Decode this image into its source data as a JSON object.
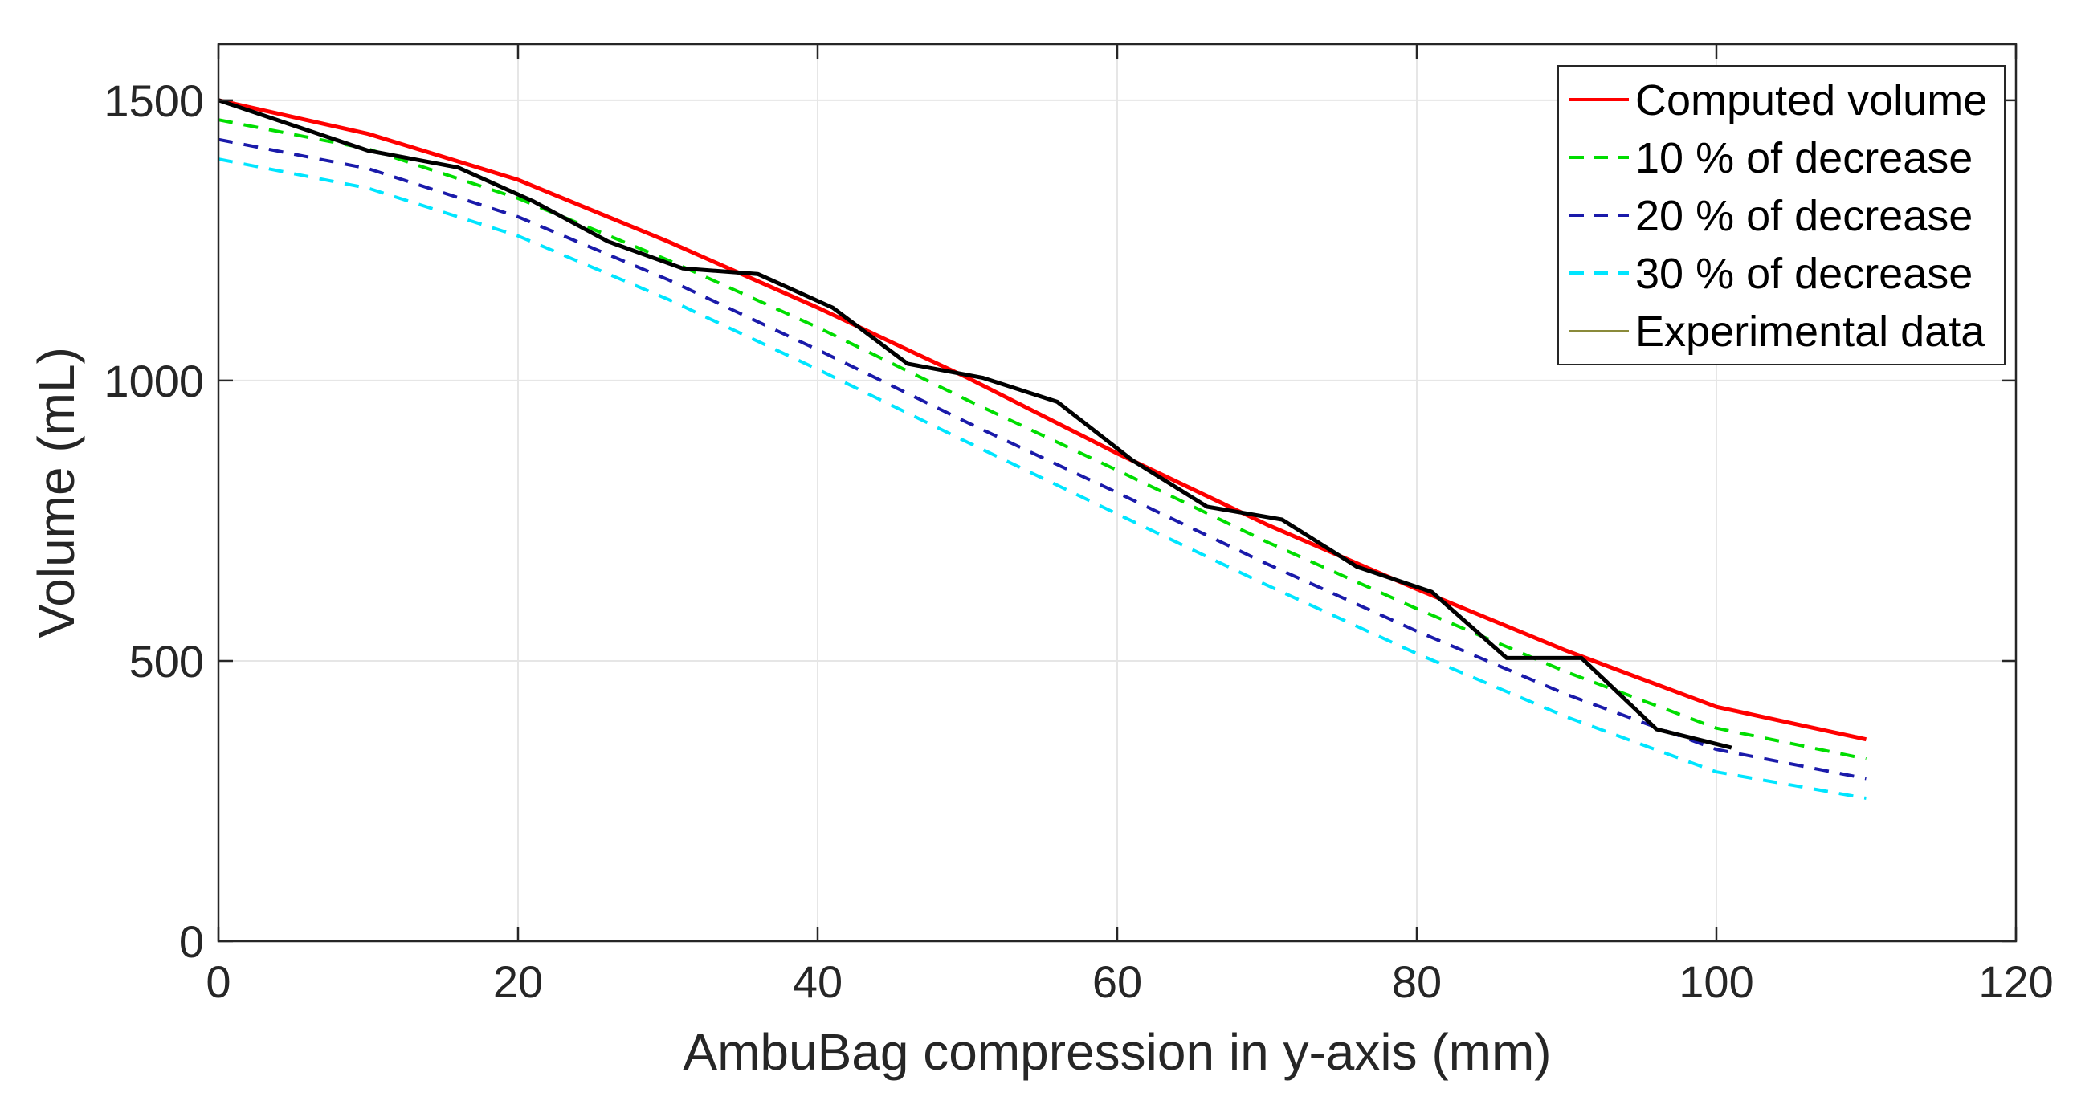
{
  "chart_data": {
    "type": "line",
    "title": "",
    "xlabel": "AmbuBag compression in y-axis (mm)",
    "ylabel": "Volume (mL)",
    "xlim": [
      0,
      120
    ],
    "ylim": [
      0,
      1600
    ],
    "xticks": [
      0,
      20,
      40,
      60,
      80,
      100,
      120
    ],
    "yticks": [
      0,
      500,
      1000,
      1500
    ],
    "grid": true,
    "legend_position": "top-right",
    "series": [
      {
        "name": "Computed volume",
        "color": "#ff0000",
        "style": "solid",
        "x": [
          0,
          10,
          20,
          30,
          40,
          50,
          60,
          70,
          80,
          90,
          100,
          110
        ],
        "y": [
          1500,
          1440,
          1358,
          1248,
          1130,
          1005,
          870,
          743,
          628,
          518,
          418,
          360
        ]
      },
      {
        "name": "10 % of decrease",
        "color": "#00dd00",
        "style": "dashed",
        "x": [
          0,
          10,
          20,
          30,
          40,
          50,
          60,
          70,
          80,
          90,
          100,
          110
        ],
        "y": [
          1465,
          1413,
          1325,
          1215,
          1095,
          965,
          840,
          712,
          593,
          480,
          380,
          325
        ]
      },
      {
        "name": "20 % of decrease",
        "color": "#1a1aaa",
        "style": "dashed",
        "x": [
          0,
          10,
          20,
          30,
          40,
          50,
          60,
          70,
          80,
          90,
          100,
          110
        ],
        "y": [
          1430,
          1378,
          1292,
          1180,
          1055,
          925,
          800,
          673,
          553,
          440,
          342,
          290
        ]
      },
      {
        "name": "30 % of decrease",
        "color": "#00e5ff",
        "style": "dashed",
        "x": [
          0,
          10,
          20,
          30,
          40,
          50,
          60,
          70,
          80,
          90,
          100,
          110
        ],
        "y": [
          1395,
          1343,
          1258,
          1145,
          1020,
          890,
          762,
          635,
          513,
          400,
          302,
          255
        ]
      },
      {
        "name": "Experimental data",
        "color": "#000000",
        "legend_color": "#8a8a3a",
        "style": "solid",
        "x": [
          0,
          5,
          10,
          16,
          21,
          26,
          31,
          36,
          41,
          46,
          51,
          56,
          61,
          66,
          71,
          76,
          81,
          86,
          91,
          96,
          101
        ],
        "y": [
          1500,
          1455,
          1410,
          1380,
          1320,
          1248,
          1200,
          1190,
          1130,
          1030,
          1005,
          962,
          858,
          775,
          752,
          668,
          623,
          505,
          505,
          378,
          345
        ]
      }
    ]
  }
}
